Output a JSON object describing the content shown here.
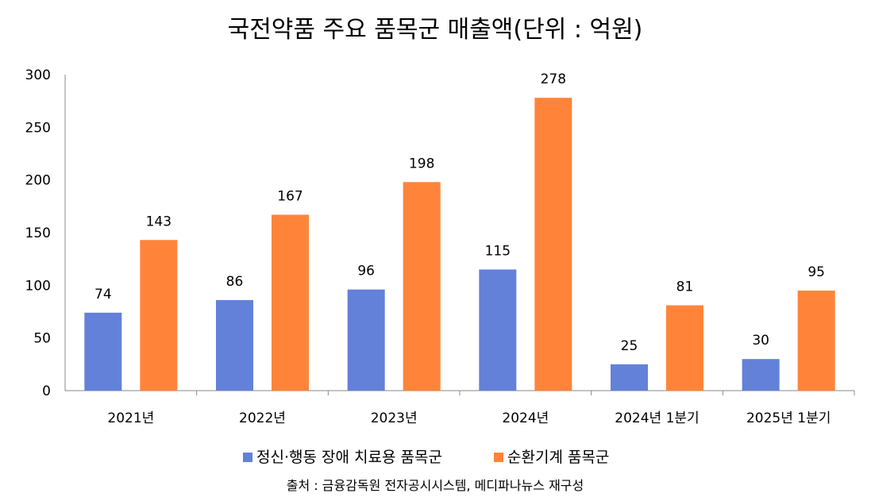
{
  "chart_data": {
    "type": "bar",
    "title": "국전약품 주요 품목군 매출액(단위 : 억원)",
    "categories": [
      "2021년",
      "2022년",
      "2023년",
      "2024년",
      "2024년 1분기",
      "2025년 1분기"
    ],
    "series": [
      {
        "name": "정신·행동 장애 치료용 품목군",
        "color": "#6381d9",
        "values": [
          74,
          86,
          96,
          115,
          25,
          30
        ]
      },
      {
        "name": "순환기계 품목군",
        "color": "#ff843a",
        "values": [
          143,
          167,
          198,
          278,
          81,
          95
        ]
      }
    ],
    "ylim": [
      0,
      300
    ],
    "yticks": [
      0,
      50,
      100,
      150,
      200,
      250,
      300
    ],
    "grid": false,
    "legend_position": "bottom",
    "source": "출처 : 금융감독원 전자공시시스템, 메디파나뉴스 재구성"
  }
}
